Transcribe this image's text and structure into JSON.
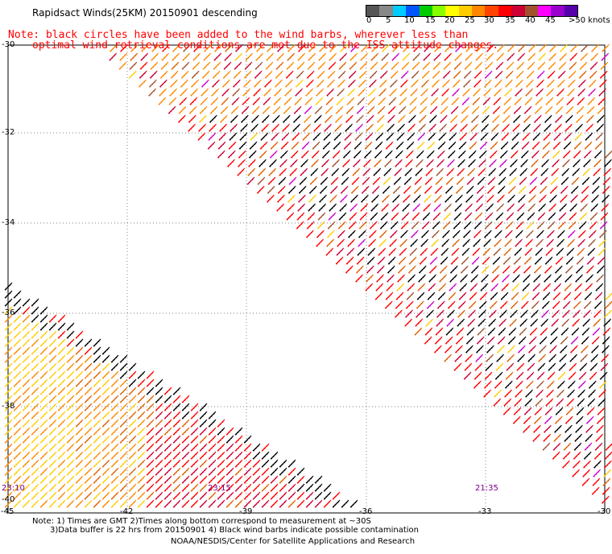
{
  "header": {
    "title": "Rapidsact Winds(25KM) 20150901 descending",
    "warning_line1": "Note: black circles have been added to the wind barbs, wherever less than",
    "warning_line2": "optimal wind retrieval conditions are met due to the ISS attitude changes."
  },
  "colorbar": {
    "labels": [
      "0",
      "5",
      "10",
      "15",
      "20",
      "25",
      "30",
      "35",
      "40",
      "45",
      ">50 knots"
    ],
    "colors": [
      "#555555",
      "#888888",
      "#00ccff",
      "#0055ff",
      "#00cc00",
      "#88ff00",
      "#ffff00",
      "#ffcc00",
      "#ff8800",
      "#ff4400",
      "#ff0000",
      "#cc0033",
      "#a0522d",
      "#ff00ff",
      "#9900cc",
      "#5500aa"
    ]
  },
  "map": {
    "lat_labels": [
      "-30",
      "-32",
      "-34",
      "-36",
      "-38",
      "-40"
    ],
    "lon_labels": [
      "-45",
      "-42",
      "-39",
      "-36",
      "-33",
      "-30"
    ],
    "time_labels": [
      "23:10",
      "23:15",
      "21:35"
    ],
    "barb_colors": {
      "contaminated": "#000000",
      "yellow": "#ffcc00",
      "orange": "#ff8800",
      "dark_orange": "#e06000",
      "red": "#ff0000",
      "crimson": "#cc0033",
      "brown": "#a0522d",
      "magenta": "#cc00cc"
    }
  },
  "footer": {
    "note_line1": "Note: 1) Times are GMT 2)Times along bottom correspond to measurement at ~30S",
    "note_line2": "3)Data buffer is 22 hrs from 20150901 4) Black wind barbs indicate possible contamination",
    "credit": "NOAA/NESDIS/Center for Satellite Applications and Research"
  }
}
